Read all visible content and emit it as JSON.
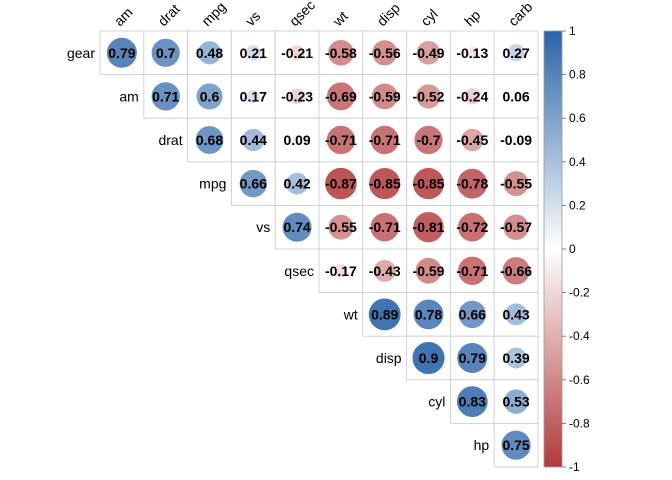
{
  "chart_data": {
    "type": "heatmap",
    "subtype": "correlation-matrix-upper",
    "variables": [
      "am",
      "drat",
      "mpg",
      "vs",
      "qsec",
      "wt",
      "disp",
      "cyl",
      "hp",
      "carb"
    ],
    "rows": [
      "gear",
      "am",
      "drat",
      "mpg",
      "vs",
      "qsec",
      "wt",
      "disp",
      "cyl",
      "hp"
    ],
    "columns": [
      "am",
      "drat",
      "mpg",
      "vs",
      "qsec",
      "wt",
      "disp",
      "cyl",
      "hp",
      "carb"
    ],
    "matrix": [
      [
        0.79,
        0.7,
        0.48,
        0.21,
        -0.21,
        -0.58,
        -0.56,
        -0.49,
        -0.13,
        0.27
      ],
      [
        null,
        0.71,
        0.6,
        0.17,
        -0.23,
        -0.69,
        -0.59,
        -0.52,
        -0.24,
        0.06
      ],
      [
        null,
        null,
        0.68,
        0.44,
        0.09,
        -0.71,
        -0.71,
        -0.7,
        -0.45,
        -0.09
      ],
      [
        null,
        null,
        null,
        0.66,
        0.42,
        -0.87,
        -0.85,
        -0.85,
        -0.78,
        -0.55
      ],
      [
        null,
        null,
        null,
        null,
        0.74,
        -0.55,
        -0.71,
        -0.81,
        -0.72,
        -0.57
      ],
      [
        null,
        null,
        null,
        null,
        null,
        -0.17,
        -0.43,
        -0.59,
        -0.71,
        -0.66
      ],
      [
        null,
        null,
        null,
        null,
        null,
        null,
        0.89,
        0.78,
        0.66,
        0.43
      ],
      [
        null,
        null,
        null,
        null,
        null,
        null,
        null,
        0.9,
        0.79,
        0.39
      ],
      [
        null,
        null,
        null,
        null,
        null,
        null,
        null,
        null,
        0.83,
        0.53
      ],
      [
        null,
        null,
        null,
        null,
        null,
        null,
        null,
        null,
        null,
        0.75
      ]
    ],
    "marker": "circle",
    "circle_area_scales_with": "absolute correlation",
    "color_scale": {
      "min": -1,
      "max": 1,
      "low_color": "#b2393b",
      "mid_color": "#ffffff",
      "high_color": "#2a64a9",
      "ticks": [
        "-1",
        "-0.8",
        "-0.6",
        "-0.4",
        "-0.2",
        "0",
        "0.2",
        "0.4",
        "0.6",
        "0.8",
        "1"
      ],
      "legend_placement": "right"
    },
    "grid": true,
    "grid_color": "#cfcfcf",
    "column_label_rotation": "45 degrees"
  }
}
